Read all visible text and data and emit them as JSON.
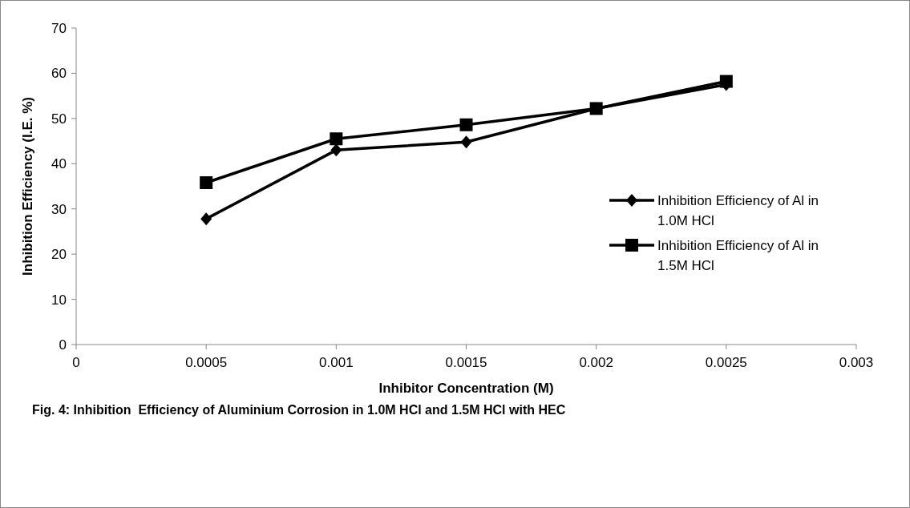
{
  "chart_data": {
    "type": "line",
    "title": "Fig. 4: Inhibition  Efficiency of Aluminium Corrosion in 1.0M HCl and 1.5M HCl with HEC",
    "xlabel": "Inhibitor Concentration (M)",
    "ylabel": "Inhibition Efficiency (I.E. %)",
    "x": [
      0.0005,
      0.001,
      0.0015,
      0.002,
      0.0025
    ],
    "series": [
      {
        "name": "Inhibition Efficiency of Al in 1.0M HCl",
        "color": "#000000",
        "marker": "diamond",
        "values": [
          27.8,
          43,
          44.8,
          52.2,
          57.5
        ]
      },
      {
        "name": "Inhibition Efficiency of Al in 1.5M HCl",
        "color": "#000000",
        "marker": "square",
        "values": [
          35.8,
          45.5,
          48.6,
          52.2,
          58.2
        ]
      }
    ],
    "xlim": [
      0,
      0.003
    ],
    "xticks": [
      0,
      0.0005,
      0.001,
      0.0015,
      0.002,
      0.0025,
      0.003
    ],
    "ylim": [
      0,
      70
    ],
    "yticks": [
      0,
      10,
      20,
      30,
      40,
      50,
      60,
      70
    ],
    "grid": false,
    "legend": "right",
    "line_style": "solid"
  }
}
